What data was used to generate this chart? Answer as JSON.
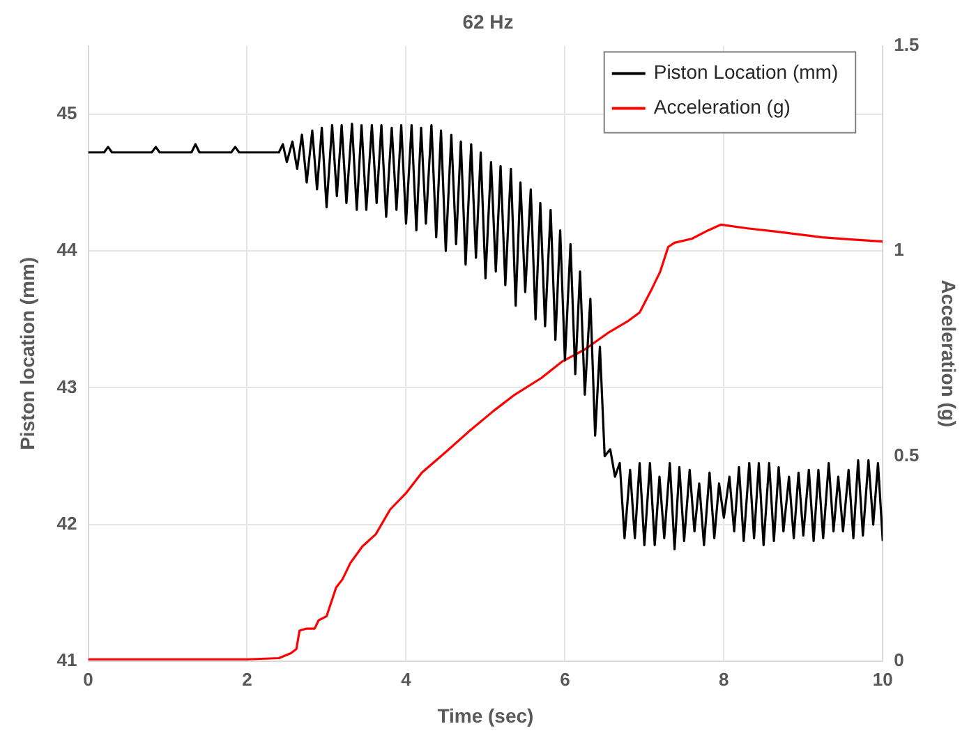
{
  "chart_data": {
    "type": "line",
    "title": "62 Hz",
    "xlabel": "Time (sec)",
    "ylabel": "Piston location (mm)",
    "y2label": "Acceleration (g)",
    "xlim": [
      0,
      10
    ],
    "xticks": [
      0,
      2,
      4,
      6,
      8,
      10
    ],
    "ylim": [
      41,
      45.5
    ],
    "yticks": [
      41,
      42,
      43,
      44,
      45
    ],
    "y2lim": [
      0,
      1.5
    ],
    "y2ticks": [
      0,
      0.5,
      1,
      1.5
    ],
    "grid": true,
    "legend": "top right",
    "marker": "none",
    "line_style": "solid",
    "series": [
      {
        "name": "Piston Location (mm)",
        "color": "#000000",
        "axis": "y",
        "x": [
          0,
          0.2,
          0.25,
          0.3,
          0.8,
          0.85,
          0.9,
          1.3,
          1.35,
          1.4,
          1.8,
          1.85,
          1.9,
          2.3,
          2.4,
          2.45,
          2.5,
          2.57,
          2.63,
          2.69,
          2.75,
          2.82,
          2.88,
          2.94,
          3.0,
          3.07,
          3.13,
          3.19,
          3.25,
          3.32,
          3.38,
          3.44,
          3.5,
          3.57,
          3.63,
          3.69,
          3.75,
          3.82,
          3.88,
          3.94,
          4.0,
          4.07,
          4.13,
          4.19,
          4.25,
          4.32,
          4.38,
          4.44,
          4.5,
          4.57,
          4.63,
          4.69,
          4.75,
          4.82,
          4.88,
          4.94,
          5.0,
          5.07,
          5.13,
          5.19,
          5.25,
          5.32,
          5.38,
          5.44,
          5.5,
          5.57,
          5.63,
          5.69,
          5.75,
          5.82,
          5.88,
          5.94,
          6.0,
          6.07,
          6.13,
          6.19,
          6.25,
          6.32,
          6.38,
          6.44,
          6.5,
          6.57,
          6.63,
          6.69,
          6.75,
          6.82,
          6.88,
          6.94,
          7.0,
          7.07,
          7.13,
          7.19,
          7.25,
          7.32,
          7.38,
          7.44,
          7.5,
          7.57,
          7.63,
          7.69,
          7.75,
          7.82,
          7.88,
          7.94,
          8.0,
          8.07,
          8.13,
          8.19,
          8.25,
          8.32,
          8.38,
          8.44,
          8.5,
          8.57,
          8.63,
          8.69,
          8.75,
          8.82,
          8.88,
          8.94,
          9.0,
          9.07,
          9.13,
          9.19,
          9.25,
          9.32,
          9.38,
          9.44,
          9.5,
          9.57,
          9.63,
          9.69,
          9.75,
          9.82,
          9.88,
          9.94,
          10.0
        ],
        "values": [
          44.72,
          44.72,
          44.76,
          44.72,
          44.72,
          44.76,
          44.72,
          44.72,
          44.78,
          44.72,
          44.72,
          44.76,
          44.72,
          44.72,
          44.72,
          44.78,
          44.65,
          44.8,
          44.6,
          44.85,
          44.5,
          44.88,
          44.45,
          44.9,
          44.32,
          44.92,
          44.4,
          44.92,
          44.35,
          44.93,
          44.3,
          44.92,
          44.3,
          44.92,
          44.35,
          44.92,
          44.25,
          44.9,
          44.3,
          44.92,
          44.2,
          44.92,
          44.15,
          44.9,
          44.2,
          44.92,
          44.1,
          44.88,
          44.0,
          44.85,
          44.05,
          44.8,
          43.9,
          44.78,
          43.95,
          44.72,
          43.8,
          44.65,
          43.85,
          44.62,
          43.75,
          44.6,
          43.6,
          44.5,
          43.7,
          44.45,
          43.5,
          44.35,
          43.45,
          44.3,
          43.35,
          44.15,
          43.2,
          44.05,
          43.1,
          43.85,
          42.95,
          43.65,
          42.65,
          43.3,
          42.5,
          42.55,
          42.35,
          42.45,
          41.9,
          42.4,
          41.9,
          42.45,
          41.85,
          42.45,
          41.85,
          42.35,
          41.9,
          42.45,
          41.82,
          42.42,
          41.88,
          42.4,
          41.95,
          42.3,
          41.85,
          42.38,
          41.9,
          42.3,
          42.05,
          42.35,
          41.95,
          42.42,
          41.88,
          42.45,
          41.9,
          42.45,
          41.85,
          42.45,
          41.88,
          42.42,
          41.95,
          42.35,
          41.9,
          42.38,
          41.92,
          42.4,
          41.88,
          42.4,
          41.9,
          42.45,
          41.95,
          42.35,
          41.95,
          42.4,
          41.9,
          42.47,
          41.92,
          42.47,
          42.0,
          42.45,
          41.88
        ]
      },
      {
        "name": "Acceleration (g)",
        "color": "#ff0000",
        "axis": "y2",
        "x": [
          0,
          1,
          2,
          2.4,
          2.55,
          2.62,
          2.66,
          2.75,
          2.85,
          2.9,
          3.0,
          3.12,
          3.2,
          3.3,
          3.45,
          3.62,
          3.8,
          4.0,
          4.2,
          4.5,
          4.79,
          5.1,
          5.37,
          5.7,
          5.96,
          6.25,
          6.54,
          6.8,
          6.94,
          7.1,
          7.2,
          7.3,
          7.38,
          7.6,
          7.8,
          7.96,
          8.3,
          8.66,
          9.24,
          9.6,
          10
        ],
        "values": [
          0.005,
          0.005,
          0.005,
          0.008,
          0.02,
          0.03,
          0.075,
          0.08,
          0.08,
          0.1,
          0.11,
          0.18,
          0.2,
          0.24,
          0.28,
          0.31,
          0.37,
          0.41,
          0.46,
          0.51,
          0.56,
          0.61,
          0.65,
          0.69,
          0.73,
          0.76,
          0.8,
          0.83,
          0.85,
          0.91,
          0.95,
          1.01,
          1.02,
          1.03,
          1.05,
          1.064,
          1.055,
          1.047,
          1.033,
          1.028,
          1.023
        ]
      }
    ]
  }
}
